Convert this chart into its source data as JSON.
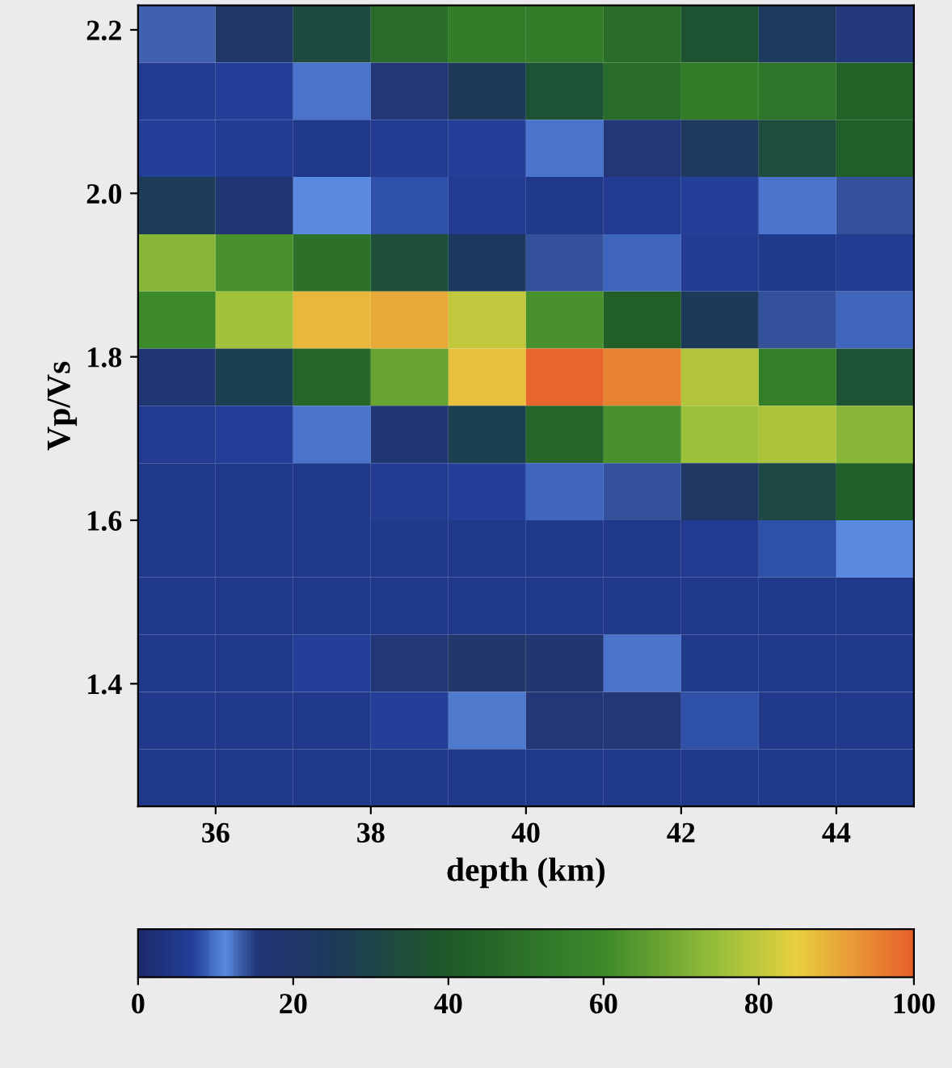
{
  "chart_data": {
    "type": "heatmap",
    "xlabel": "depth (km)",
    "ylabel": "Vp/Vs",
    "xlim": [
      35,
      45
    ],
    "ylim": [
      1.25,
      2.23
    ],
    "xticks": [
      36,
      38,
      40,
      42,
      44
    ],
    "yticks": [
      1.4,
      1.6,
      1.8,
      {
        "value": 2,
        "label": "2.0"
      },
      2.2
    ],
    "clim": [
      0,
      100
    ],
    "cticks": [
      0,
      20,
      40,
      60,
      80,
      100
    ],
    "cells": [
      [
        13,
        21,
        33,
        47,
        54,
        54,
        48,
        37,
        24,
        15
      ],
      [
        6,
        7,
        10,
        16,
        25,
        36,
        47,
        54,
        51,
        44
      ],
      [
        7,
        6,
        5,
        6,
        7,
        10,
        16,
        24,
        34,
        42
      ],
      [
        26,
        17,
        11,
        8,
        6,
        5,
        6,
        7,
        10,
        14
      ],
      [
        72,
        62,
        49,
        35,
        23,
        14,
        9,
        6,
        5,
        6
      ],
      [
        60,
        76,
        88,
        90,
        80,
        62,
        42,
        25,
        14,
        9
      ],
      [
        17,
        28,
        45,
        67,
        87,
        99,
        95,
        78,
        55,
        36
      ],
      [
        6,
        7,
        10,
        17,
        28,
        45,
        62,
        75,
        77,
        72
      ],
      [
        5,
        5,
        5,
        6,
        7,
        9,
        14,
        22,
        32,
        42
      ],
      [
        5,
        5,
        5,
        5,
        5,
        5,
        5,
        6,
        8,
        11
      ],
      [
        5,
        5,
        5,
        5,
        5,
        5,
        5,
        5,
        5,
        5
      ],
      [
        5,
        5,
        7,
        16,
        20,
        18,
        10,
        5,
        5,
        5
      ],
      [
        5,
        5,
        5,
        7,
        12,
        16,
        16,
        8,
        5,
        5
      ],
      [
        5,
        5,
        5,
        5,
        5,
        5,
        5,
        5,
        5,
        5
      ]
    ]
  }
}
